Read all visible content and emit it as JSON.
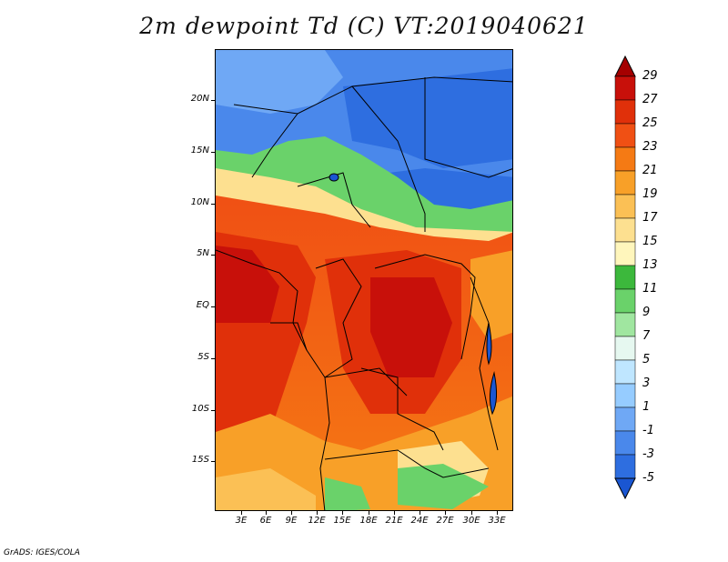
{
  "title": "2m dewpoint Td (C) VT:2019040621",
  "credit": "GrADS: IGES/COLA",
  "lat_labels": [
    "20N",
    "15N",
    "10N",
    "5N",
    "EQ",
    "5S",
    "10S",
    "15S"
  ],
  "lon_labels": [
    "3E",
    "6E",
    "9E",
    "12E",
    "15E",
    "18E",
    "21E",
    "24E",
    "27E",
    "30E",
    "33E"
  ],
  "legend": {
    "labels": [
      "29",
      "27",
      "25",
      "23",
      "21",
      "19",
      "17",
      "15",
      "13",
      "11",
      "9",
      "7",
      "5",
      "3",
      "1",
      "-1",
      "-3",
      "-5"
    ],
    "colors": [
      "#a50000",
      "#c8100a",
      "#e0300a",
      "#f05014",
      "#f57a14",
      "#f8a028",
      "#fbc055",
      "#fde090",
      "#fff6bc",
      "#3cb83c",
      "#6ad26a",
      "#a0e6a0",
      "#e6f8f0",
      "#bfe6ff",
      "#96ccff",
      "#6fa8f5",
      "#4a88eb",
      "#2e6ee0",
      "#1a56d2"
    ]
  }
}
